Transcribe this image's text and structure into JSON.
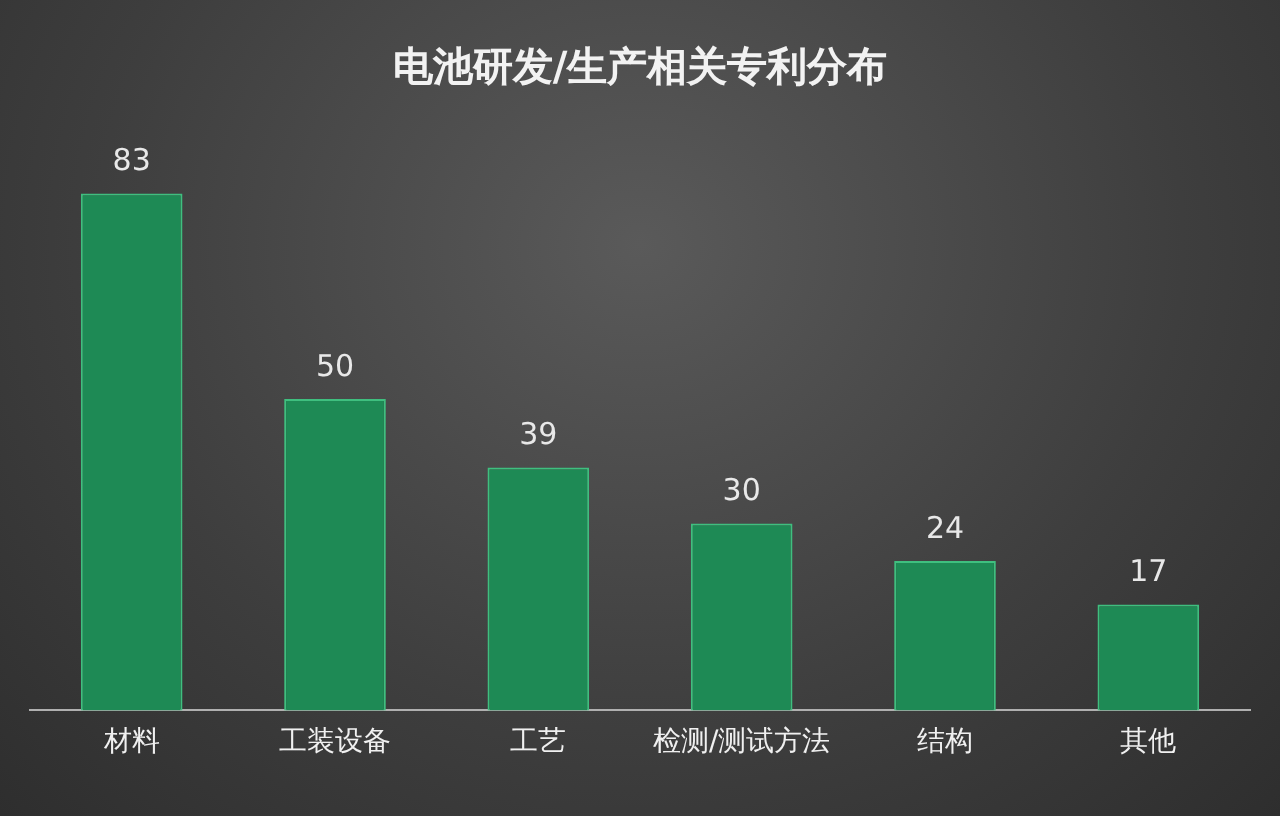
{
  "chart_data": {
    "type": "bar",
    "title": "电池研发/生产相关专利分布",
    "categories": [
      "材料",
      "工装设备",
      "工艺",
      "检测/测试方法",
      "结构",
      "其他"
    ],
    "values": [
      83,
      50,
      39,
      30,
      24,
      17
    ],
    "color": "#1e8a55",
    "data_labels": true,
    "grid": false,
    "legend": false,
    "tick_labels": "x"
  }
}
